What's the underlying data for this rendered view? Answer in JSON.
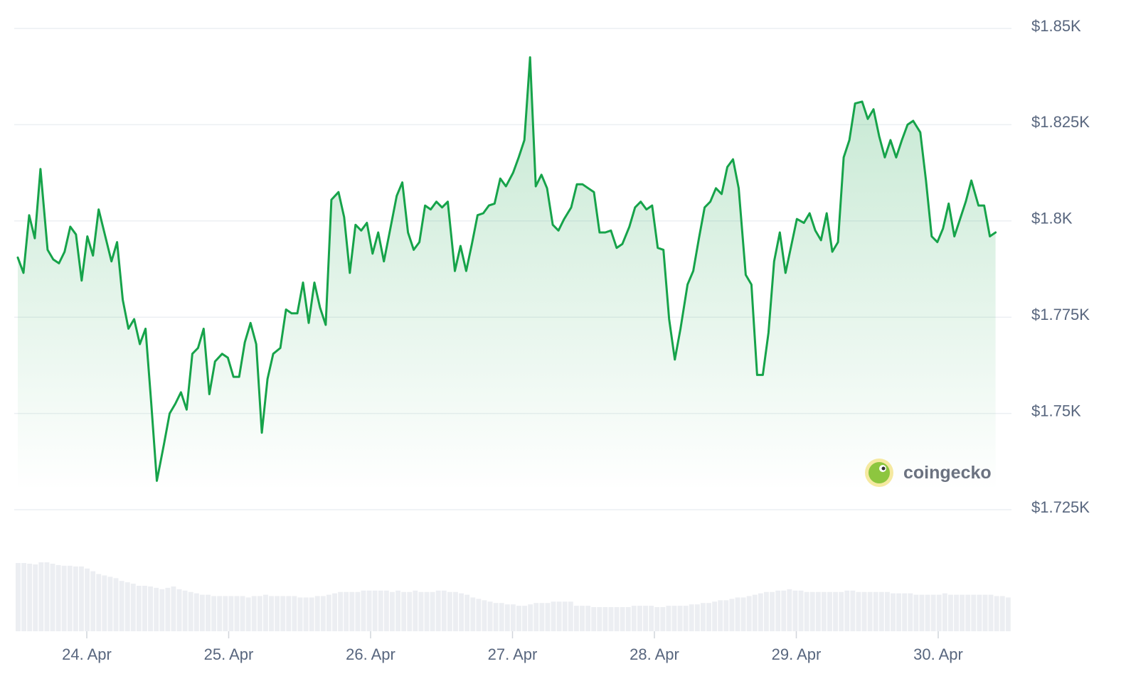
{
  "chart_data": {
    "type": "area",
    "title": "",
    "xlabel": "",
    "ylabel": "",
    "ylim": [
      1725,
      1850
    ],
    "y_ticks": [
      1850,
      1825,
      1800,
      1775,
      1750,
      1725
    ],
    "y_tick_labels": [
      "$1.85K",
      "$1.825K",
      "$1.8K",
      "$1.775K",
      "$1.75K",
      "$1.725K"
    ],
    "x_ticks": [
      "24. Apr",
      "25. Apr",
      "26. Apr",
      "27. Apr",
      "28. Apr",
      "29. Apr",
      "30. Apr"
    ],
    "grid": true,
    "legend": "none",
    "line_color": "#16a34a",
    "fill_color": "#16a34a",
    "volume_color": "#eceef2",
    "series": [
      {
        "x_day_offset": [
          0.0,
          0.04,
          0.08,
          0.12,
          0.16,
          0.21,
          0.25,
          0.29,
          0.33,
          0.37,
          0.41,
          0.45,
          0.49,
          0.53,
          0.57,
          0.62,
          0.66,
          0.7,
          0.74,
          0.78,
          0.82,
          0.86,
          0.9,
          0.94,
          0.98,
          1.03,
          1.07,
          1.11,
          1.15,
          1.19,
          1.23,
          1.27,
          1.31,
          1.35,
          1.39,
          1.44,
          1.48,
          1.52,
          1.56,
          1.6,
          1.64,
          1.68,
          1.72,
          1.76,
          1.8,
          1.85,
          1.89,
          1.93,
          1.97,
          2.01,
          2.05,
          2.09,
          2.13,
          2.17,
          2.21,
          2.26,
          2.3,
          2.34,
          2.38,
          2.42,
          2.46,
          2.5,
          2.54,
          2.58,
          2.62,
          2.67,
          2.71,
          2.75,
          2.79,
          2.83,
          2.87,
          2.91,
          2.95,
          2.99,
          3.03,
          3.08,
          3.12,
          3.16,
          3.2,
          3.24,
          3.28,
          3.32,
          3.36,
          3.4,
          3.44,
          3.49,
          3.53,
          3.57,
          3.61,
          3.65,
          3.69,
          3.73,
          3.77,
          3.81,
          3.85,
          3.9,
          3.94,
          3.98,
          4.02,
          4.06,
          4.1,
          4.14,
          4.18,
          4.22,
          4.26,
          4.31,
          4.35,
          4.39,
          4.43,
          4.47,
          4.51,
          4.55,
          4.59,
          4.63,
          4.67,
          4.72,
          4.76,
          4.8,
          4.84,
          4.88,
          4.92,
          4.96,
          5.0,
          5.04,
          5.08,
          5.13,
          5.17,
          5.21,
          5.25,
          5.29,
          5.33,
          5.37,
          5.41,
          5.45,
          5.49,
          5.54,
          5.58,
          5.62,
          5.66,
          5.7,
          5.74,
          5.78,
          5.82,
          5.86,
          5.9,
          5.95,
          5.99,
          6.03,
          6.07,
          6.11,
          6.15,
          6.19,
          6.23,
          6.27,
          6.31,
          6.36,
          6.4,
          6.44,
          6.48,
          6.52,
          6.56,
          6.6,
          6.64,
          6.68,
          6.72,
          6.77,
          6.81,
          6.85,
          6.89,
          6.93,
          6.97,
          7.01
        ],
        "values": [
          1790.5,
          1786.5,
          1801.5,
          1795.5,
          1813.5,
          1792.5,
          1790.0,
          1789.0,
          1792.0,
          1798.5,
          1796.5,
          1784.5,
          1796.0,
          1791.0,
          1803.0,
          1795.5,
          1789.5,
          1794.5,
          1779.5,
          1772.0,
          1774.5,
          1768.0,
          1772.0,
          1753.0,
          1732.5,
          1742.0,
          1750.0,
          1752.5,
          1755.5,
          1751.0,
          1765.5,
          1767.0,
          1772.0,
          1755.0,
          1763.5,
          1765.5,
          1764.5,
          1759.5,
          1759.5,
          1768.5,
          1773.5,
          1768.0,
          1745.0,
          1759.0,
          1765.5,
          1767.0,
          1777.0,
          1776.0,
          1776.0,
          1784.0,
          1773.5,
          1784.0,
          1777.5,
          1773.0,
          1805.5,
          1807.5,
          1801.0,
          1786.5,
          1799.0,
          1797.5,
          1799.5,
          1791.5,
          1797.0,
          1789.5,
          1797.0,
          1806.5,
          1810.0,
          1797.0,
          1792.5,
          1794.5,
          1804.0,
          1803.0,
          1805.0,
          1803.5,
          1805.0,
          1787.0,
          1793.5,
          1787.0,
          1794.0,
          1801.5,
          1802.0,
          1804.0,
          1804.5,
          1811.0,
          1809.0,
          1812.5,
          1816.5,
          1821.0,
          1842.5,
          1809.0,
          1812.0,
          1808.5,
          1799.0,
          1797.5,
          1800.5,
          1803.5,
          1809.5,
          1809.5,
          1808.5,
          1807.5,
          1797.0,
          1797.0,
          1797.5,
          1793.0,
          1794.0,
          1798.5,
          1803.5,
          1805.0,
          1803.0,
          1804.0,
          1793.0,
          1792.5,
          1774.5,
          1764.0,
          1772.0,
          1783.5,
          1787.0,
          1795.5,
          1803.5,
          1805.0,
          1808.5,
          1807.0,
          1814.0,
          1816.0,
          1808.5,
          1786.0,
          1783.5,
          1760.0,
          1760.0,
          1771.0,
          1789.5,
          1797.0,
          1786.5,
          1793.5,
          1800.5,
          1799.5,
          1802.0,
          1797.5,
          1795.0,
          1802.0,
          1792.0,
          1794.5,
          1816.5,
          1821.0,
          1830.5,
          1831.0,
          1826.5,
          1829.0,
          1822.0,
          1816.5,
          1821.0,
          1816.5,
          1821.0,
          1825.0,
          1826.0,
          1823.0,
          1810.5,
          1796.0,
          1794.5,
          1798.0,
          1804.5,
          1796.0,
          1800.5,
          1805.0,
          1810.5,
          1804.0,
          1804.0,
          1796.0,
          1797.0
        ]
      }
    ],
    "volume_relative": [
      0.99,
      0.99,
      0.98,
      0.97,
      1.0,
      1.0,
      0.98,
      0.96,
      0.95,
      0.95,
      0.94,
      0.94,
      0.91,
      0.87,
      0.83,
      0.81,
      0.79,
      0.77,
      0.73,
      0.71,
      0.69,
      0.66,
      0.66,
      0.65,
      0.63,
      0.61,
      0.63,
      0.65,
      0.61,
      0.59,
      0.57,
      0.55,
      0.53,
      0.53,
      0.51,
      0.51,
      0.51,
      0.51,
      0.51,
      0.51,
      0.49,
      0.51,
      0.51,
      0.53,
      0.51,
      0.51,
      0.51,
      0.51,
      0.51,
      0.49,
      0.49,
      0.49,
      0.51,
      0.51,
      0.53,
      0.55,
      0.57,
      0.57,
      0.57,
      0.57,
      0.59,
      0.59,
      0.59,
      0.59,
      0.59,
      0.57,
      0.59,
      0.57,
      0.57,
      0.59,
      0.57,
      0.57,
      0.57,
      0.59,
      0.59,
      0.57,
      0.57,
      0.55,
      0.53,
      0.49,
      0.47,
      0.45,
      0.43,
      0.41,
      0.41,
      0.39,
      0.39,
      0.37,
      0.37,
      0.39,
      0.41,
      0.41,
      0.41,
      0.43,
      0.43,
      0.43,
      0.43,
      0.37,
      0.37,
      0.37,
      0.35,
      0.35,
      0.35,
      0.35,
      0.35,
      0.35,
      0.35,
      0.37,
      0.37,
      0.37,
      0.37,
      0.35,
      0.35,
      0.37,
      0.37,
      0.37,
      0.37,
      0.39,
      0.39,
      0.41,
      0.41,
      0.43,
      0.45,
      0.45,
      0.47,
      0.49,
      0.49,
      0.51,
      0.53,
      0.55,
      0.57,
      0.57,
      0.59,
      0.59,
      0.61,
      0.59,
      0.59,
      0.57,
      0.57,
      0.57,
      0.57,
      0.57,
      0.57,
      0.57,
      0.59,
      0.59,
      0.57,
      0.57,
      0.57,
      0.57,
      0.57,
      0.57,
      0.55,
      0.55,
      0.55,
      0.55,
      0.53,
      0.53,
      0.53,
      0.53,
      0.53,
      0.55,
      0.53,
      0.53,
      0.53,
      0.53,
      0.53,
      0.53,
      0.53,
      0.53,
      0.51,
      0.51,
      0.49
    ]
  },
  "watermark": {
    "brand": "coingecko",
    "icon": "gecko-logo-icon"
  }
}
